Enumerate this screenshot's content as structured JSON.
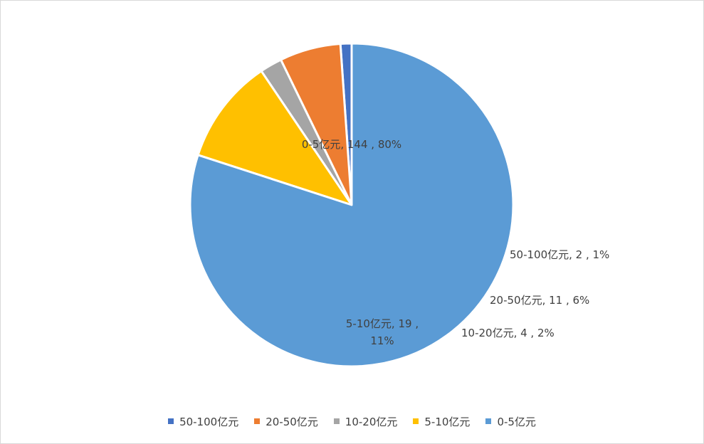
{
  "chart_data": {
    "type": "pie",
    "categories": [
      "50-100亿元",
      "20-50亿元",
      "10-20亿元",
      "5-10亿元",
      "0-5亿元"
    ],
    "values": [
      2,
      11,
      4,
      19,
      144
    ],
    "percent_labels": [
      "1%",
      "6%",
      "2%",
      "11%",
      "80%"
    ],
    "data_labels": [
      [
        "50-100亿元, 2 , 1%"
      ],
      [
        "20-50亿元, 11 , 6%"
      ],
      [
        "10-20亿元, 4 , 2%"
      ],
      [
        "5-10亿元, 19 ,",
        "11%"
      ],
      [
        "0-5亿元, 144 , 80%"
      ]
    ],
    "colors": [
      "#4472C4",
      "#ED7D31",
      "#A5A5A5",
      "#FFC000",
      "#5B9BD5"
    ],
    "legend_position": "bottom",
    "start_angle_deg": 90,
    "direction": "counterclockwise"
  }
}
